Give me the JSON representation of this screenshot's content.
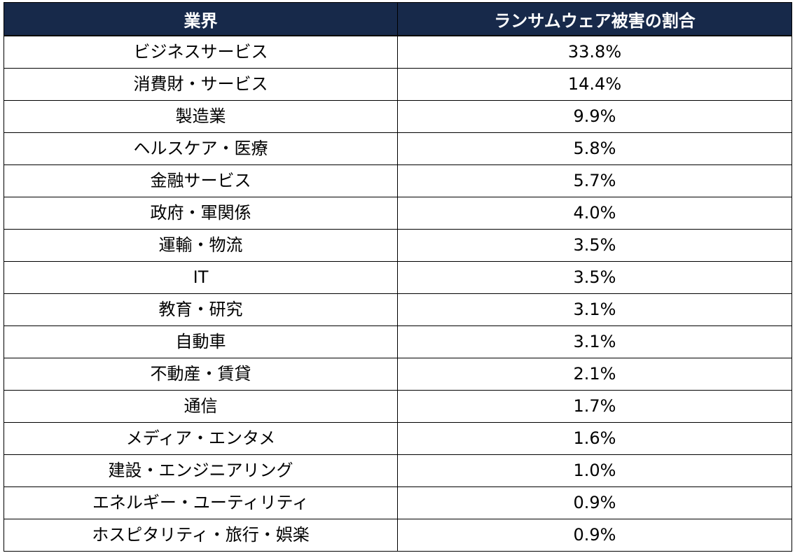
{
  "colors": {
    "header_bg": "#17294a",
    "header_text": "#ffffff",
    "border": "#000000",
    "body_text": "#000000"
  },
  "table": {
    "headers": [
      "業界",
      "ランサムウェア被害の割合"
    ],
    "rows": [
      [
        "ビジネスサービス",
        "33.8%"
      ],
      [
        "消費財・サービス",
        "14.4%"
      ],
      [
        "製造業",
        "9.9%"
      ],
      [
        "ヘルスケア・医療",
        "5.8%"
      ],
      [
        "金融サービス",
        "5.7%"
      ],
      [
        "政府・軍関係",
        "4.0%"
      ],
      [
        "運輸・物流",
        "3.5%"
      ],
      [
        "IT",
        "3.5%"
      ],
      [
        "教育・研究",
        "3.1%"
      ],
      [
        "自動車",
        "3.1%"
      ],
      [
        "不動産・賃貸",
        "2.1%"
      ],
      [
        "通信",
        "1.7%"
      ],
      [
        "メディア・エンタメ",
        "1.6%"
      ],
      [
        "建設・エンジニアリング",
        "1.0%"
      ],
      [
        "エネルギー・ユーティリティ",
        "0.9%"
      ],
      [
        "ホスピタリティ・旅行・娯楽",
        "0.9%"
      ]
    ]
  },
  "chart_data": {
    "type": "table",
    "columns": [
      "業界",
      "ランサムウェア被害の割合"
    ],
    "categories": [
      "ビジネスサービス",
      "消費財・サービス",
      "製造業",
      "ヘルスケア・医療",
      "金融サービス",
      "政府・軍関係",
      "運輸・物流",
      "IT",
      "教育・研究",
      "自動車",
      "不動産・賃貸",
      "通信",
      "メディア・エンタメ",
      "建設・エンジニアリング",
      "エネルギー・ユーティリティ",
      "ホスピタリティ・旅行・娯楽"
    ],
    "values": [
      33.8,
      14.4,
      9.9,
      5.8,
      5.7,
      4.0,
      3.5,
      3.5,
      3.1,
      3.1,
      2.1,
      1.7,
      1.6,
      1.0,
      0.9,
      0.9
    ],
    "unit": "%"
  }
}
